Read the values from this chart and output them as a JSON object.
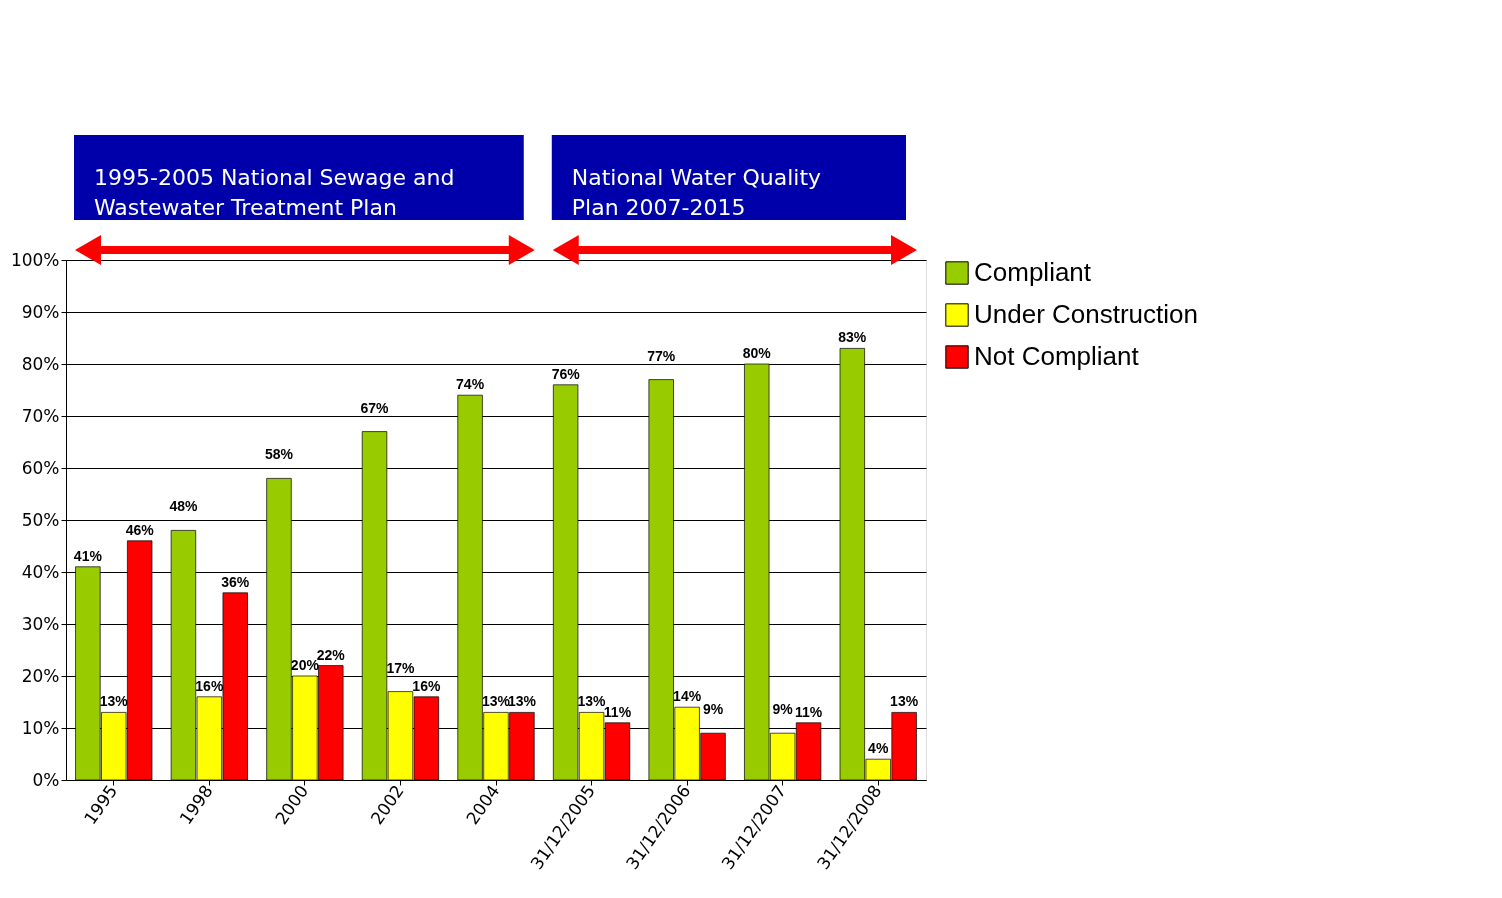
{
  "chart_data": {
    "type": "bar",
    "categories": [
      "1995",
      "1998",
      "2000",
      "2002",
      "2004",
      "31/12/2005",
      "31/12/2006",
      "31/12/2007",
      "31/12/2008"
    ],
    "series": [
      {
        "name": "Compliant",
        "color": "#99cc00",
        "values": [
          41,
          48,
          58,
          67,
          74,
          76,
          77,
          80,
          83
        ],
        "value_labels": [
          "41%",
          "48%",
          "58%",
          "67%",
          "74%",
          "76%",
          "77%",
          "80%",
          "83%"
        ]
      },
      {
        "name": "Under Construction",
        "color": "#ffff00",
        "values": [
          13,
          16,
          20,
          17,
          13,
          13,
          14,
          9,
          4
        ],
        "value_labels": [
          "13%",
          "16%",
          "20%",
          "17%",
          "13%",
          "13%",
          "14%",
          "9%",
          "4%"
        ]
      },
      {
        "name": "Not Compliant",
        "color": "#ff0000",
        "values": [
          46,
          36,
          22,
          16,
          13,
          11,
          9,
          11,
          13
        ],
        "value_labels": [
          "46%",
          "36%",
          "22%",
          "16%",
          "13%",
          "11%",
          "9%",
          "11%",
          "13%"
        ]
      }
    ],
    "ylim": [
      0,
      100
    ],
    "yticks": [
      {
        "value": 0,
        "label": "0%"
      },
      {
        "value": 10,
        "label": "10%"
      },
      {
        "value": 20,
        "label": "20%"
      },
      {
        "value": 30,
        "label": "30%"
      },
      {
        "value": 40,
        "label": "40%"
      },
      {
        "value": 50,
        "label": "50%"
      },
      {
        "value": 60,
        "label": "60%"
      },
      {
        "value": 70,
        "label": "70%"
      },
      {
        "value": 80,
        "label": "80%"
      },
      {
        "value": 90,
        "label": "90%"
      },
      {
        "value": 100,
        "label": "100%"
      }
    ],
    "grid": "y",
    "legend": "right",
    "annotations": [
      "1995-2005 National Sewage and\nWastewater Treatment Plan",
      "National Water Quality\nPlan 2007-2015"
    ]
  }
}
